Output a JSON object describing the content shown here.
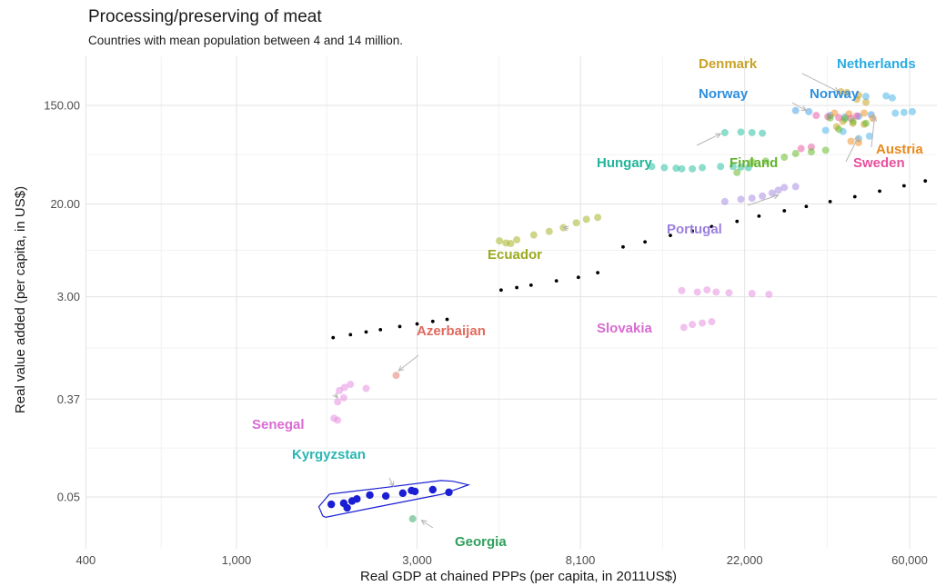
{
  "chart_data": {
    "type": "scatter",
    "title": "Processing/preserving of meat",
    "subtitle": "Countries with mean population between 4 and 14 million.",
    "xlabel": "Real GDP at chained PPPs (per capita, in 2011US$)",
    "ylabel": "Real value added (per capita, in US$)",
    "x_scale": "log",
    "y_scale": "log",
    "xlim": [
      400,
      80000
    ],
    "ylim": [
      0.025,
      350
    ],
    "x_ticks": [
      {
        "value": 400,
        "label": "400"
      },
      {
        "value": 1000,
        "label": "1,000"
      },
      {
        "value": 3000,
        "label": "3,000"
      },
      {
        "value": 8100,
        "label": "8,100"
      },
      {
        "value": 22000,
        "label": "22,000"
      },
      {
        "value": 60000,
        "label": "60,000"
      }
    ],
    "y_ticks": [
      {
        "value": 0.05,
        "label": "0.05"
      },
      {
        "value": 0.37,
        "label": "0.37"
      },
      {
        "value": 3,
        "label": "3.00"
      },
      {
        "value": 20,
        "label": "20.00"
      },
      {
        "value": 150,
        "label": "150.00"
      }
    ],
    "grid": true,
    "legend": "none",
    "series": [
      {
        "name": "Denmark",
        "color": "#c9a227",
        "label_color": "#c9a227",
        "points": [
          [
            39500,
            198
          ],
          [
            41000,
            195
          ],
          [
            44000,
            185
          ],
          [
            43500,
            170
          ],
          [
            46000,
            160
          ],
          [
            40000,
            108
          ],
          [
            42500,
            104
          ],
          [
            45500,
            102
          ],
          [
            38500,
            97
          ]
        ]
      },
      {
        "name": "Netherlands",
        "color": "#4fb6e6",
        "label_color": "#29abe2",
        "points": [
          [
            46000,
            180
          ],
          [
            52000,
            182
          ],
          [
            54000,
            175
          ],
          [
            55000,
            128
          ],
          [
            58000,
            130
          ],
          [
            61000,
            132
          ],
          [
            36000,
            90
          ],
          [
            40000,
            88
          ],
          [
            47000,
            80
          ],
          [
            44000,
            76
          ]
        ]
      },
      {
        "name": "Norway",
        "color": "#4fa3e6",
        "label_color": "#2f8fe0",
        "points": [
          [
            30000,
            135
          ],
          [
            32500,
            132
          ],
          [
            37000,
            122
          ],
          [
            40500,
            118
          ],
          [
            44000,
            120
          ],
          [
            47500,
            124
          ]
        ]
      },
      {
        "name": "Austria",
        "color": "#f0932b",
        "label_color": "#e8891c",
        "points": [
          [
            38000,
            128
          ],
          [
            41500,
            126
          ],
          [
            45500,
            128
          ],
          [
            48000,
            115
          ],
          [
            44000,
            70
          ],
          [
            42000,
            72
          ]
        ]
      },
      {
        "name": "Sweden",
        "color": "#e95fa6",
        "label_color": "#e64f9d",
        "points": [
          [
            34000,
            122
          ],
          [
            36500,
            119
          ],
          [
            39000,
            117
          ],
          [
            42000,
            115
          ],
          [
            43500,
            121
          ],
          [
            33000,
            64
          ],
          [
            31000,
            62
          ]
        ]
      },
      {
        "name": "Finland",
        "color": "#6aba2e",
        "label_color": "#5fb32a",
        "points": [
          [
            37000,
            116
          ],
          [
            40500,
            114
          ],
          [
            42500,
            108
          ],
          [
            46000,
            104
          ],
          [
            39000,
            92
          ],
          [
            36000,
            60
          ],
          [
            33000,
            58
          ],
          [
            30000,
            56
          ],
          [
            28000,
            52
          ],
          [
            25000,
            48
          ],
          [
            23000,
            47
          ],
          [
            21000,
            38
          ]
        ]
      },
      {
        "name": "Hungary",
        "color": "#2fc1a3",
        "label_color": "#21b59a",
        "points": [
          [
            12500,
            43
          ],
          [
            13500,
            42
          ],
          [
            14500,
            41.5
          ],
          [
            15000,
            41
          ],
          [
            16000,
            41
          ],
          [
            17000,
            42
          ],
          [
            19000,
            43
          ],
          [
            20500,
            43
          ],
          [
            21500,
            42.5
          ],
          [
            22500,
            42
          ],
          [
            19500,
            86
          ],
          [
            21500,
            87
          ],
          [
            23000,
            86
          ],
          [
            24500,
            85
          ]
        ]
      },
      {
        "name": "Portugal",
        "color": "#a98ee6",
        "label_color": "#9b7fe0",
        "points": [
          [
            19500,
            21
          ],
          [
            21500,
            22
          ],
          [
            23000,
            22.5
          ],
          [
            24500,
            23.5
          ],
          [
            26000,
            25
          ],
          [
            27000,
            26.5
          ],
          [
            28000,
            28
          ],
          [
            30000,
            28.5
          ]
        ]
      },
      {
        "name": "Ecuador",
        "color": "#a8b52a",
        "label_color": "#9aa91e",
        "points": [
          [
            4950,
            9.4
          ],
          [
            5150,
            9.0
          ],
          [
            5300,
            8.9
          ],
          [
            5500,
            9.6
          ],
          [
            6100,
            10.6
          ],
          [
            6700,
            11.4
          ],
          [
            7300,
            12.3
          ],
          [
            7900,
            13.6
          ],
          [
            8400,
            14.6
          ],
          [
            9000,
            15.2
          ]
        ]
      },
      {
        "name": "Slovakia",
        "color": "#e58fe0",
        "label_color": "#d96bd2",
        "points": [
          [
            15000,
            3.4
          ],
          [
            16500,
            3.3
          ],
          [
            17500,
            3.45
          ],
          [
            18500,
            3.3
          ],
          [
            20000,
            3.25
          ],
          [
            23000,
            3.2
          ],
          [
            25500,
            3.15
          ],
          [
            16000,
            1.7
          ],
          [
            17000,
            1.75
          ],
          [
            18000,
            1.8
          ],
          [
            15200,
            1.6
          ]
        ]
      },
      {
        "name": "Azerbaijan",
        "color": "#e67e73",
        "label_color": "#e06a5e",
        "points": [
          [
            2640,
            0.6
          ]
        ]
      },
      {
        "name": "Senegal",
        "color": "#e58fe0",
        "label_color": "#d96bd2",
        "points": [
          [
            1870,
            0.44
          ],
          [
            1930,
            0.47
          ],
          [
            2000,
            0.5
          ],
          [
            2200,
            0.46
          ],
          [
            1920,
            0.38
          ],
          [
            1850,
            0.35
          ],
          [
            1810,
            0.25
          ],
          [
            1850,
            0.24
          ]
        ]
      },
      {
        "name": "Kyrgyzstan",
        "color": "#1b1fd4",
        "label_color": "#2ab6b4",
        "points": [
          [
            1780,
            0.043
          ],
          [
            1920,
            0.044
          ],
          [
            1960,
            0.04
          ],
          [
            2020,
            0.046
          ],
          [
            2080,
            0.048
          ],
          [
            2250,
            0.052
          ],
          [
            2480,
            0.051
          ],
          [
            2750,
            0.054
          ],
          [
            2900,
            0.057
          ],
          [
            2960,
            0.056
          ],
          [
            3300,
            0.058
          ],
          [
            3640,
            0.055
          ]
        ]
      },
      {
        "name": "Georgia",
        "color": "#3aa96b",
        "label_color": "#2fa05c",
        "points": [
          [
            2920,
            0.032
          ]
        ]
      }
    ],
    "trend": {
      "name": "",
      "color": "#000000",
      "points": [
        [
          1800,
          1.3
        ],
        [
          2000,
          1.38
        ],
        [
          2200,
          1.46
        ],
        [
          2400,
          1.53
        ],
        [
          2700,
          1.63
        ],
        [
          3000,
          1.72
        ],
        [
          3300,
          1.81
        ],
        [
          3600,
          1.89
        ],
        [
          5000,
          3.44
        ],
        [
          5500,
          3.62
        ],
        [
          6000,
          3.8
        ],
        [
          7000,
          4.15
        ],
        [
          8000,
          4.46
        ],
        [
          9000,
          4.9
        ],
        [
          10500,
          8.3
        ],
        [
          12000,
          9.2
        ],
        [
          14000,
          10.5
        ],
        [
          16000,
          11.5
        ],
        [
          18000,
          12.6
        ],
        [
          21000,
          14.0
        ],
        [
          24000,
          15.6
        ],
        [
          28000,
          17.4
        ],
        [
          32000,
          19.0
        ],
        [
          37000,
          21.0
        ],
        [
          43000,
          23.2
        ],
        [
          50000,
          26.0
        ],
        [
          58000,
          29.0
        ],
        [
          66000,
          32.0
        ]
      ]
    },
    "annotations": [
      {
        "text": "Denmark",
        "series": "Denmark",
        "arrow_to": [
          39000,
          198
        ]
      },
      {
        "text": "Netherlands",
        "series": "Netherlands"
      },
      {
        "text": "Norway",
        "series": "Norway",
        "arrow_to": [
          32000,
          135
        ]
      },
      {
        "text": "Norway",
        "series": "Norway"
      },
      {
        "text": "Austria",
        "series": "Austria",
        "arrow_to": [
          48500,
          120
        ]
      },
      {
        "text": "Sweden",
        "series": "Sweden",
        "arrow_to": [
          44000,
          80
        ]
      },
      {
        "text": "Finland",
        "series": "Finland"
      },
      {
        "text": "Hungary",
        "series": "Hungary",
        "arrow_to": [
          19000,
          84
        ]
      },
      {
        "text": "Portugal",
        "series": "Portugal",
        "arrow_to": [
          27000,
          24
        ]
      },
      {
        "text": "Ecuador",
        "series": "Ecuador",
        "arrow_to": [
          7300,
          12.4
        ]
      },
      {
        "text": "Slovakia",
        "series": "Slovakia"
      },
      {
        "text": "Azerbaijan",
        "series": "Azerbaijan",
        "arrow_to": [
          2680,
          0.66
        ]
      },
      {
        "text": "Senegal",
        "series": "Senegal",
        "arrow_to": [
          1850,
          0.38
        ]
      },
      {
        "text": "Kyrgyzstan",
        "series": "Kyrgyzstan",
        "arrow_to": [
          2600,
          0.062
        ]
      },
      {
        "text": "Georgia",
        "series": "Georgia",
        "arrow_to": [
          3080,
          0.031
        ]
      }
    ],
    "hull": {
      "series": "Kyrgyzstan",
      "points": [
        [
          1690,
          0.034
        ],
        [
          1650,
          0.041
        ],
        [
          1760,
          0.053
        ],
        [
          2500,
          0.061
        ],
        [
          3470,
          0.07
        ],
        [
          3730,
          0.069
        ],
        [
          4100,
          0.064
        ],
        [
          3500,
          0.053
        ],
        [
          2200,
          0.039
        ],
        [
          1720,
          0.033
        ]
      ]
    }
  }
}
